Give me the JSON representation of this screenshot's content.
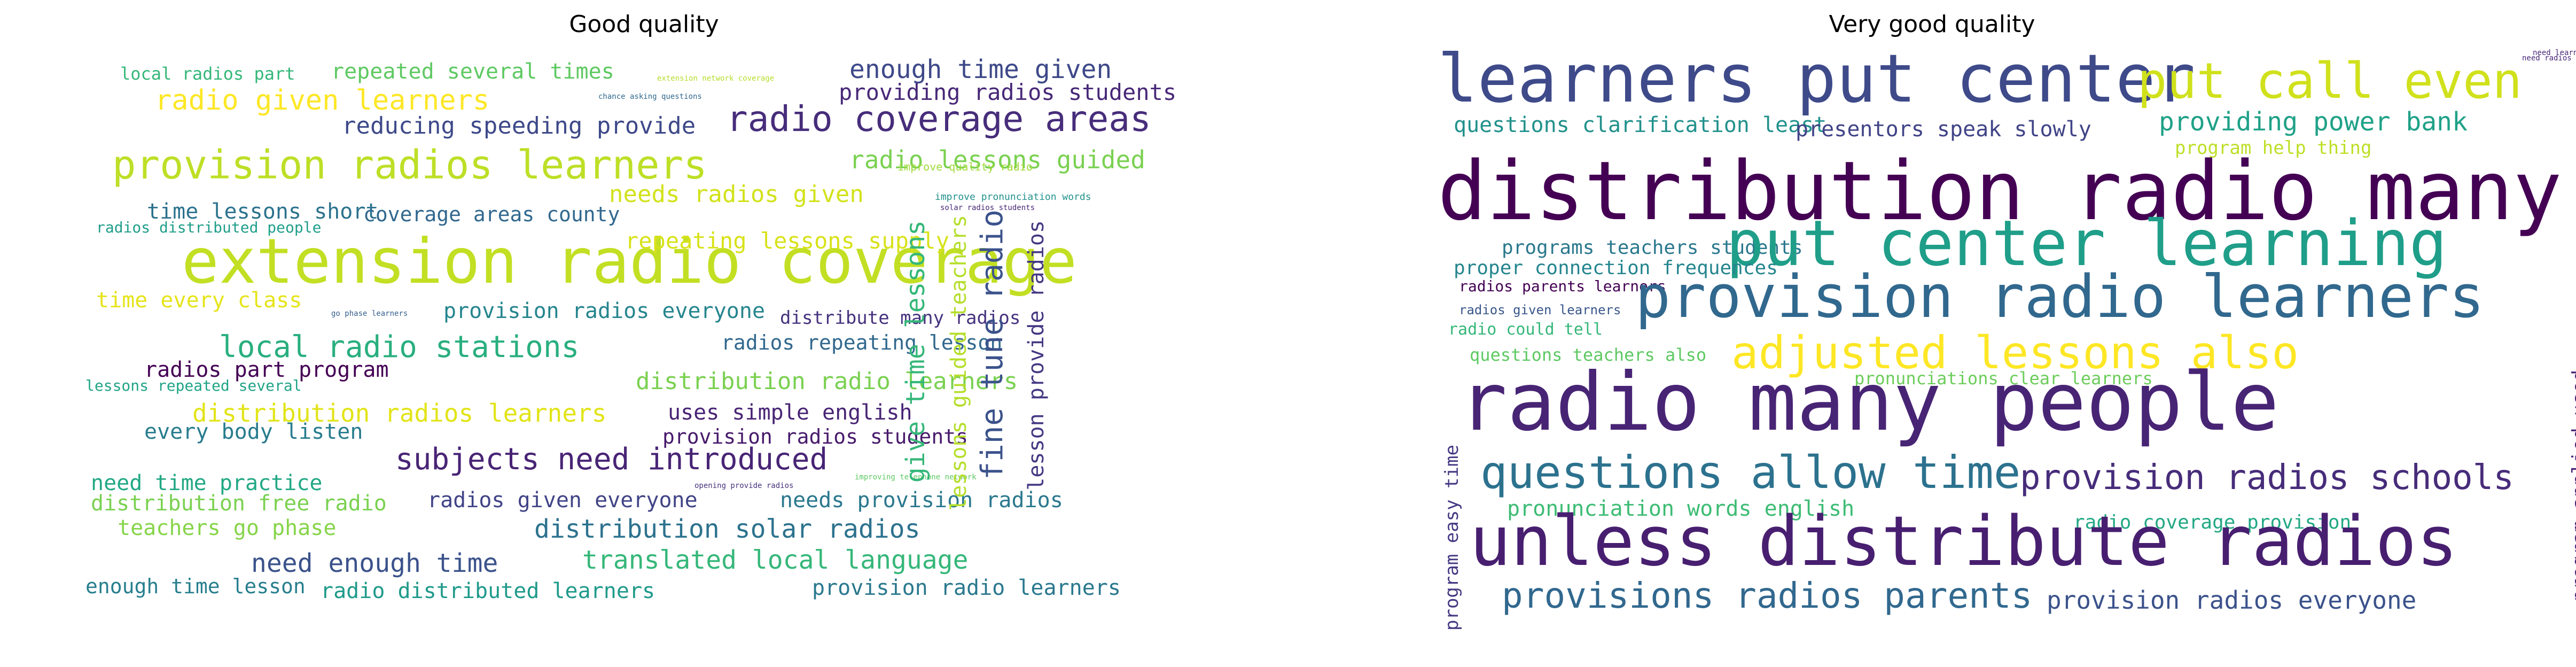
{
  "panels": [
    {
      "title": "Good quality",
      "words": [
        {
          "text": "local radios part",
          "size": 32,
          "color": "#35b779",
          "v": false
        },
        {
          "text": "repeated several times",
          "size": 40,
          "color": "#5ec962",
          "v": false
        },
        {
          "text": "extension network coverage",
          "size": 14,
          "color": "#b5de2b",
          "v": false
        },
        {
          "text": "enough time given",
          "size": 48,
          "color": "#3e4989",
          "v": false
        },
        {
          "text": "radio given learners",
          "size": 52,
          "color": "#fde725",
          "v": false
        },
        {
          "text": "chance asking questions",
          "size": 14,
          "color": "#31688e",
          "v": false
        },
        {
          "text": "providing radios students",
          "size": 42,
          "color": "#482878",
          "v": false
        },
        {
          "text": "reducing speeding provide",
          "size": 44,
          "color": "#3e4989",
          "v": false
        },
        {
          "text": "radio coverage areas",
          "size": 66,
          "color": "#472d7b",
          "v": false
        },
        {
          "text": "provision radios learners",
          "size": 74,
          "color": "#bddf26",
          "v": false
        },
        {
          "text": "radio lessons guided",
          "size": 46,
          "color": "#7ad151",
          "v": false
        },
        {
          "text": "improve quality radio",
          "size": 20,
          "color": "#a0da39",
          "v": false
        },
        {
          "text": "needs radios given",
          "size": 44,
          "color": "#d2e21b",
          "v": false
        },
        {
          "text": "improve pronunciation words",
          "size": 18,
          "color": "#21918c",
          "v": false
        },
        {
          "text": "time lessons short",
          "size": 40,
          "color": "#2c728e",
          "v": false
        },
        {
          "text": "coverage areas county",
          "size": 38,
          "color": "#31688e",
          "v": false
        },
        {
          "text": "solar radios students",
          "size": 14,
          "color": "#482878",
          "v": false
        },
        {
          "text": "radios distributed people",
          "size": 28,
          "color": "#1f9e89",
          "v": false
        },
        {
          "text": "extension radio coverage",
          "size": 116,
          "color": "#c2df23",
          "v": false
        },
        {
          "text": "repeating lessons supply",
          "size": 42,
          "color": "#d8e219",
          "v": false
        },
        {
          "text": "time every class",
          "size": 40,
          "color": "#e5e419",
          "v": false
        },
        {
          "text": "go phase learners",
          "size": 14,
          "color": "#355f8d",
          "v": false
        },
        {
          "text": "provision radios everyone",
          "size": 40,
          "color": "#25858e",
          "v": false
        },
        {
          "text": "distribute many radios",
          "size": 34,
          "color": "#46327e",
          "v": false
        },
        {
          "text": "local radio stations",
          "size": 56,
          "color": "#29af7f",
          "v": false
        },
        {
          "text": "radios repeating lesson",
          "size": 38,
          "color": "#31688e",
          "v": false
        },
        {
          "text": "radios part program",
          "size": 40,
          "color": "#440154",
          "v": false
        },
        {
          "text": "lessons repeated several",
          "size": 28,
          "color": "#20a486",
          "v": false
        },
        {
          "text": "distribution radio learners",
          "size": 44,
          "color": "#7ad151",
          "v": false
        },
        {
          "text": "distribution radios learners",
          "size": 46,
          "color": "#e2e418",
          "v": false
        },
        {
          "text": "uses simple english",
          "size": 40,
          "color": "#482475",
          "v": false
        },
        {
          "text": "provision radios students",
          "size": 38,
          "color": "#481a6c",
          "v": false
        },
        {
          "text": "every body listen",
          "size": 40,
          "color": "#287c8e",
          "v": false
        },
        {
          "text": "subjects need introduced",
          "size": 56,
          "color": "#482475",
          "v": false
        },
        {
          "text": "need time practice",
          "size": 40,
          "color": "#22a884",
          "v": false
        },
        {
          "text": "improving telephone network",
          "size": 14,
          "color": "#5ec962",
          "v": false
        },
        {
          "text": "distribution free radio",
          "size": 40,
          "color": "#7ad151",
          "v": false
        },
        {
          "text": "radios given everyone",
          "size": 40,
          "color": "#414487",
          "v": false
        },
        {
          "text": "needs provision radios",
          "size": 40,
          "color": "#2a788e",
          "v": false
        },
        {
          "text": "opening provide radios",
          "size": 14,
          "color": "#46327e",
          "v": false
        },
        {
          "text": "teachers go phase",
          "size": 40,
          "color": "#86d549",
          "v": false
        },
        {
          "text": "distribution solar radios",
          "size": 48,
          "color": "#2c728e",
          "v": false
        },
        {
          "text": "need enough time",
          "size": 48,
          "color": "#3b528b",
          "v": false
        },
        {
          "text": "translated local language",
          "size": 48,
          "color": "#35b779",
          "v": false
        },
        {
          "text": "enough time lesson",
          "size": 38,
          "color": "#277f8e",
          "v": false
        },
        {
          "text": "radio distributed learners",
          "size": 40,
          "color": "#1f9a8a",
          "v": false
        },
        {
          "text": "provision radio learners",
          "size": 40,
          "color": "#2a788e",
          "v": false
        },
        {
          "text": "give time lessons",
          "size": 48,
          "color": "#35b779",
          "v": true
        },
        {
          "text": "lessons guided teachers",
          "size": 40,
          "color": "#b5de2b",
          "v": true
        },
        {
          "text": "fine tune radio",
          "size": 56,
          "color": "#3b528b",
          "v": true
        },
        {
          "text": "lesson provide radios",
          "size": 40,
          "color": "#443983",
          "v": true
        }
      ]
    },
    {
      "title": "Very good quality",
      "words": [
        {
          "text": "learners put center",
          "size": 124,
          "color": "#3e4a89",
          "v": false
        },
        {
          "text": "put call even",
          "size": 92,
          "color": "#d0e11c",
          "v": false
        },
        {
          "text": "need learners participate",
          "size": 14,
          "color": "#482878",
          "v": false
        },
        {
          "text": "questions clarification least",
          "size": 40,
          "color": "#21918c",
          "v": false
        },
        {
          "text": "presentors speak slowly",
          "size": 40,
          "color": "#414487",
          "v": false
        },
        {
          "text": "providing power bank",
          "size": 48,
          "color": "#1fa187",
          "v": false
        },
        {
          "text": "program help thing",
          "size": 34,
          "color": "#bddf26",
          "v": false
        },
        {
          "text": "distribution radio many",
          "size": 152,
          "color": "#440154",
          "v": false
        },
        {
          "text": "programs teachers students",
          "size": 36,
          "color": "#2a788e",
          "v": false
        },
        {
          "text": "put center learning",
          "size": 118,
          "color": "#1f9e89",
          "v": false
        },
        {
          "text": "proper connection frequences",
          "size": 36,
          "color": "#25858e",
          "v": false
        },
        {
          "text": "radios parents learners",
          "size": 28,
          "color": "#440154",
          "v": false
        },
        {
          "text": "provision radio learners",
          "size": 110,
          "color": "#31688e",
          "v": false
        },
        {
          "text": "radios given learners",
          "size": 24,
          "color": "#39568c",
          "v": false
        },
        {
          "text": "radio could tell",
          "size": 30,
          "color": "#35b779",
          "v": false
        },
        {
          "text": "adjusted lessons also",
          "size": 84,
          "color": "#fde725",
          "v": false
        },
        {
          "text": "questions teachers also",
          "size": 32,
          "color": "#5ec962",
          "v": false
        },
        {
          "text": "pronunciations clear learners",
          "size": 32,
          "color": "#6ccd5a",
          "v": false
        },
        {
          "text": "radio many people",
          "size": 150,
          "color": "#482475",
          "v": false
        },
        {
          "text": "questions allow time",
          "size": 84,
          "color": "#2c728e",
          "v": false
        },
        {
          "text": "provision radios schools",
          "size": 64,
          "color": "#472c7a",
          "v": false
        },
        {
          "text": "pronunciation words english",
          "size": 40,
          "color": "#3dbc74",
          "v": false
        },
        {
          "text": "radio coverage provision",
          "size": 36,
          "color": "#22a884",
          "v": false
        },
        {
          "text": "unless distribute radios",
          "size": 128,
          "color": "#481f70",
          "v": false
        },
        {
          "text": "provisions radios parents",
          "size": 66,
          "color": "#31688e",
          "v": false
        },
        {
          "text": "provision radios everyone",
          "size": 46,
          "color": "#3b528b",
          "v": false
        },
        {
          "text": "program easy time",
          "size": 34,
          "color": "#443983",
          "v": true
        },
        {
          "text": "program applied used",
          "size": 36,
          "color": "#482173",
          "v": true
        },
        {
          "text": "need radios distributed",
          "size": 14,
          "color": "#482878",
          "v": false
        }
      ]
    }
  ]
}
